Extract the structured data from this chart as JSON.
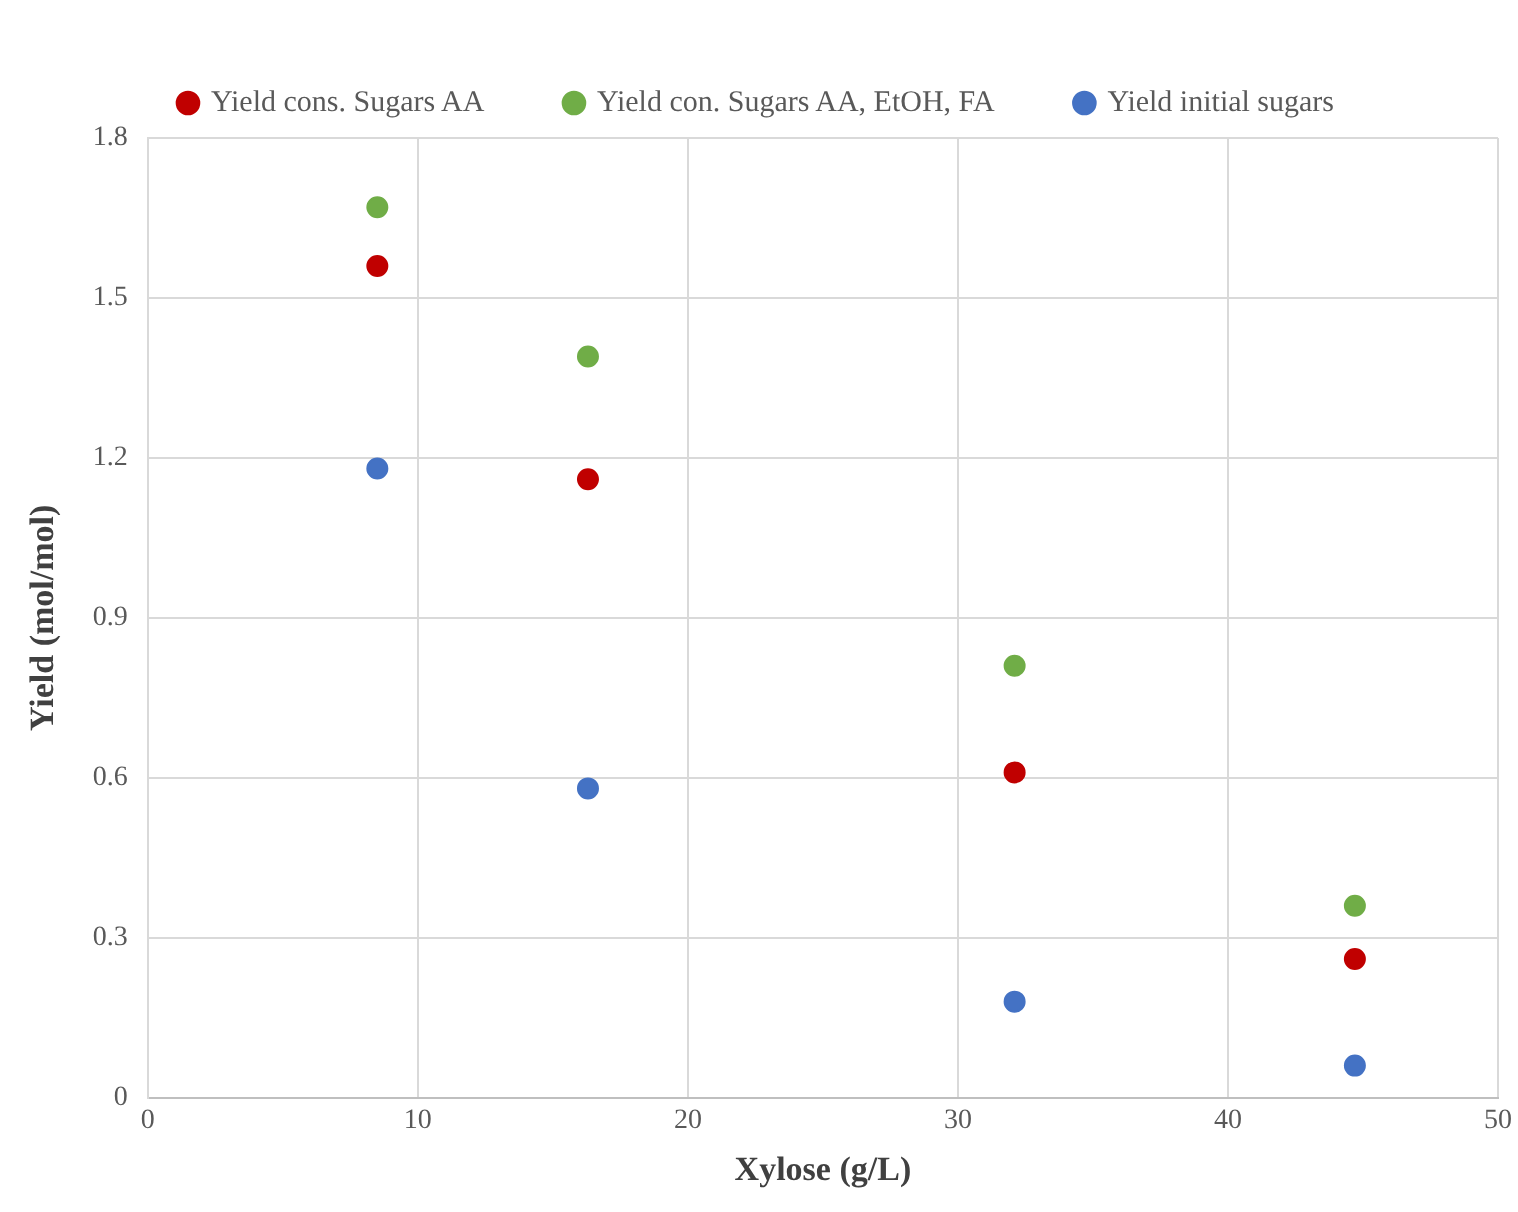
{
  "chart_data": {
    "type": "scatter",
    "xlabel": "Xylose (g/L)",
    "ylabel": "Yield (mol/mol)",
    "x": [
      8.5,
      16.3,
      32.1,
      44.7
    ],
    "series": [
      {
        "name": "Yield cons. Sugars AA",
        "color": "#c00000",
        "values": [
          1.56,
          1.16,
          0.61,
          0.26
        ]
      },
      {
        "name": "Yield con. Sugars AA, EtOH, FA",
        "color": "#70ad47",
        "values": [
          1.67,
          1.39,
          0.81,
          0.36
        ]
      },
      {
        "name": "Yield initial sugars",
        "color": "#4472c4",
        "values": [
          1.18,
          0.58,
          0.18,
          0.06
        ]
      }
    ],
    "xlim": [
      0,
      50
    ],
    "xticks": [
      0,
      10,
      20,
      30,
      40,
      50
    ],
    "ylim": [
      0,
      1.8
    ],
    "yticks": [
      0,
      0.3,
      0.6,
      0.9,
      1.2,
      1.5,
      1.8
    ],
    "grid": true,
    "legend": "top",
    "marker": "circle"
  }
}
